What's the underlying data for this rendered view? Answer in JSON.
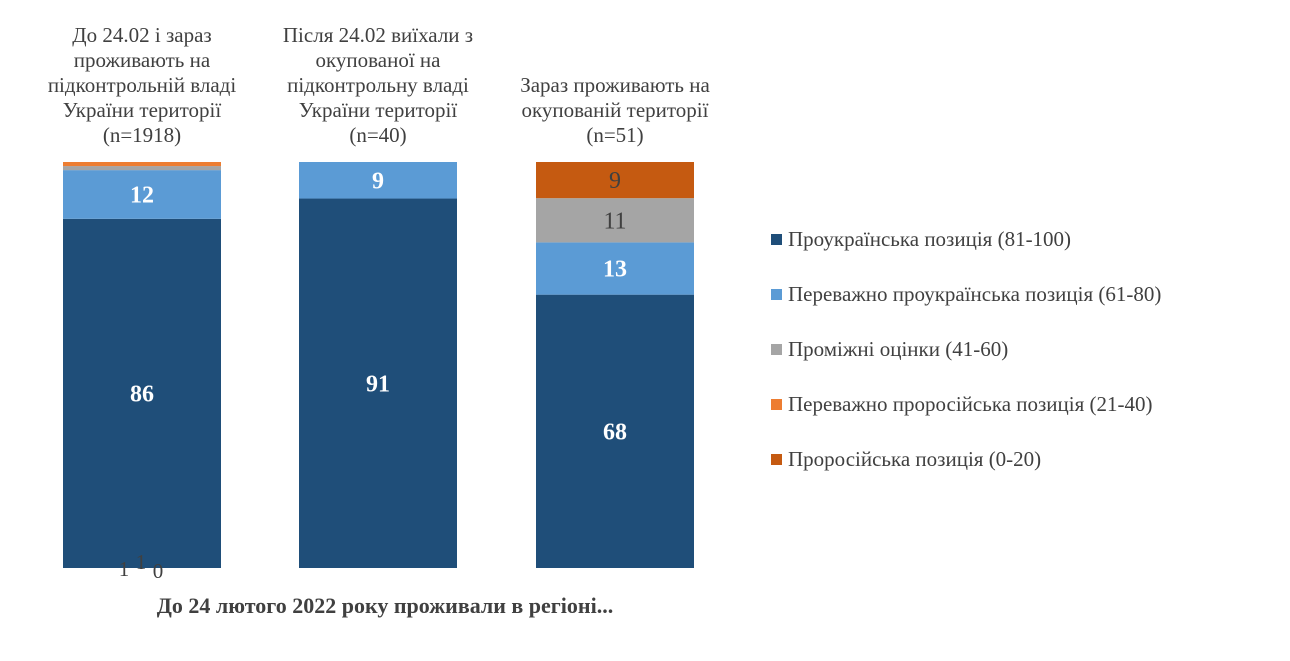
{
  "chart_data": {
    "type": "stacked-bar",
    "xlabel": "До 24 лютого 2022 року проживали в регіоні...",
    "ylim": [
      0,
      100
    ],
    "categories": [
      {
        "lines": [
          "До 24.02 і зараз",
          "проживають на",
          "підконтрольній владі",
          "України території",
          "(n=1918)"
        ]
      },
      {
        "lines": [
          "Після 24.02 виїхали з",
          "окупованої на",
          "підконтрольну владі",
          "України території",
          "(n=40)"
        ]
      },
      {
        "lines": [
          "Зараз проживають на",
          "окупованій території",
          "(n=51)"
        ]
      }
    ],
    "series": [
      {
        "name": "Проукраїнська позиція (81-100)",
        "color": "#1f4e79",
        "label_color": "#ffffff",
        "bold": true,
        "values": [
          86,
          91,
          68
        ]
      },
      {
        "name": "Переважно проукраїнська позиція (61-80)",
        "color": "#5b9bd5",
        "label_color": "#ffffff",
        "bold": true,
        "values": [
          12,
          9,
          13
        ]
      },
      {
        "name": "Проміжні оцінки (41-60)",
        "color": "#a5a5a5",
        "label_color": "#404040",
        "bold": false,
        "values": [
          1,
          0,
          11
        ]
      },
      {
        "name": "Переважно проросійська позиція (21-40)",
        "color": "#ed7d31",
        "label_color": "#404040",
        "bold": false,
        "values": [
          1,
          0,
          0
        ]
      },
      {
        "name": "Проросійська позиція (0-20)",
        "color": "#c55a11",
        "label_color": "#404040",
        "bold": false,
        "values": [
          0,
          0,
          9
        ]
      }
    ],
    "data_labels": [
      [
        "86",
        "12",
        "1",
        "1",
        "0"
      ],
      [
        "91",
        "9",
        null,
        null,
        null
      ],
      [
        "68",
        "13",
        "11",
        null,
        "9"
      ]
    ]
  }
}
